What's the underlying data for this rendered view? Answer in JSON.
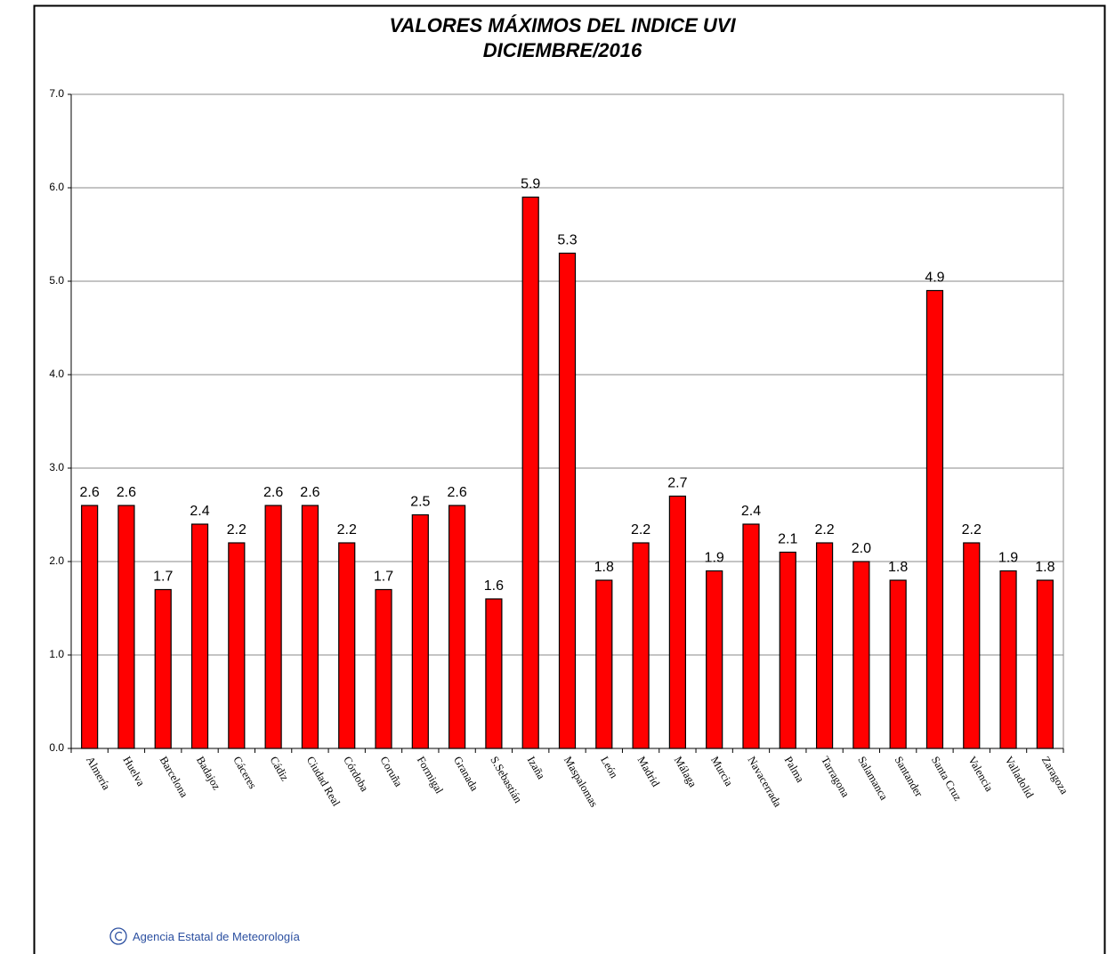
{
  "chart_data": {
    "type": "bar",
    "title": "VALORES MÁXIMOS DEL INDICE UVI",
    "subtitle": "DICIEMBRE/2016",
    "categories": [
      "Almería",
      "Huelva",
      "Barcelona",
      "Badajoz",
      "Cáceres",
      "Cádiz",
      "Ciudad Real",
      "Córdoba",
      "Coruña",
      "Formigal",
      "Granada",
      "S.Sebastián",
      "Izaña",
      "Maspalomas",
      "León",
      "Madrid",
      "Málaga",
      "Murcia",
      "Navacerrada",
      "Palma",
      "Tarragona",
      "Salamanca",
      "Santander",
      "Santa Cruz",
      "Valencia",
      "Valladolid",
      "Zaragoza"
    ],
    "values": [
      2.6,
      2.6,
      1.7,
      2.4,
      2.2,
      2.6,
      2.6,
      2.2,
      1.7,
      2.5,
      2.6,
      1.6,
      5.9,
      5.3,
      1.8,
      2.2,
      2.7,
      1.9,
      2.4,
      2.1,
      2.2,
      2.0,
      1.8,
      4.9,
      2.2,
      1.9,
      1.8
    ],
    "value_labels": [
      "2.6",
      "2.6",
      "1.7",
      "2.4",
      "2.2",
      "2.6",
      "2.6",
      "2.2",
      "1.7",
      "2.5",
      "2.6",
      "1.6",
      "5.9",
      "5.3",
      "1.8",
      "2.2",
      "2.7",
      "1.9",
      "2.4",
      "2.1",
      "2.2",
      "2.0",
      "1.8",
      "4.9",
      "2.2",
      "1.9",
      "1.8"
    ],
    "color": "#ff0000",
    "ylim": [
      0,
      7
    ],
    "yticks": [
      {
        "value": 0,
        "label": "0.0"
      },
      {
        "value": 1,
        "label": "1.0"
      },
      {
        "value": 2,
        "label": "2.0"
      },
      {
        "value": 3,
        "label": "3.0"
      },
      {
        "value": 4,
        "label": "4.0"
      },
      {
        "value": 5,
        "label": "5.0"
      },
      {
        "value": 6,
        "label": "6.0"
      },
      {
        "value": 7,
        "label": "7.0"
      }
    ],
    "grid": true,
    "footer": "Agencia Estatal de Meteorología"
  }
}
